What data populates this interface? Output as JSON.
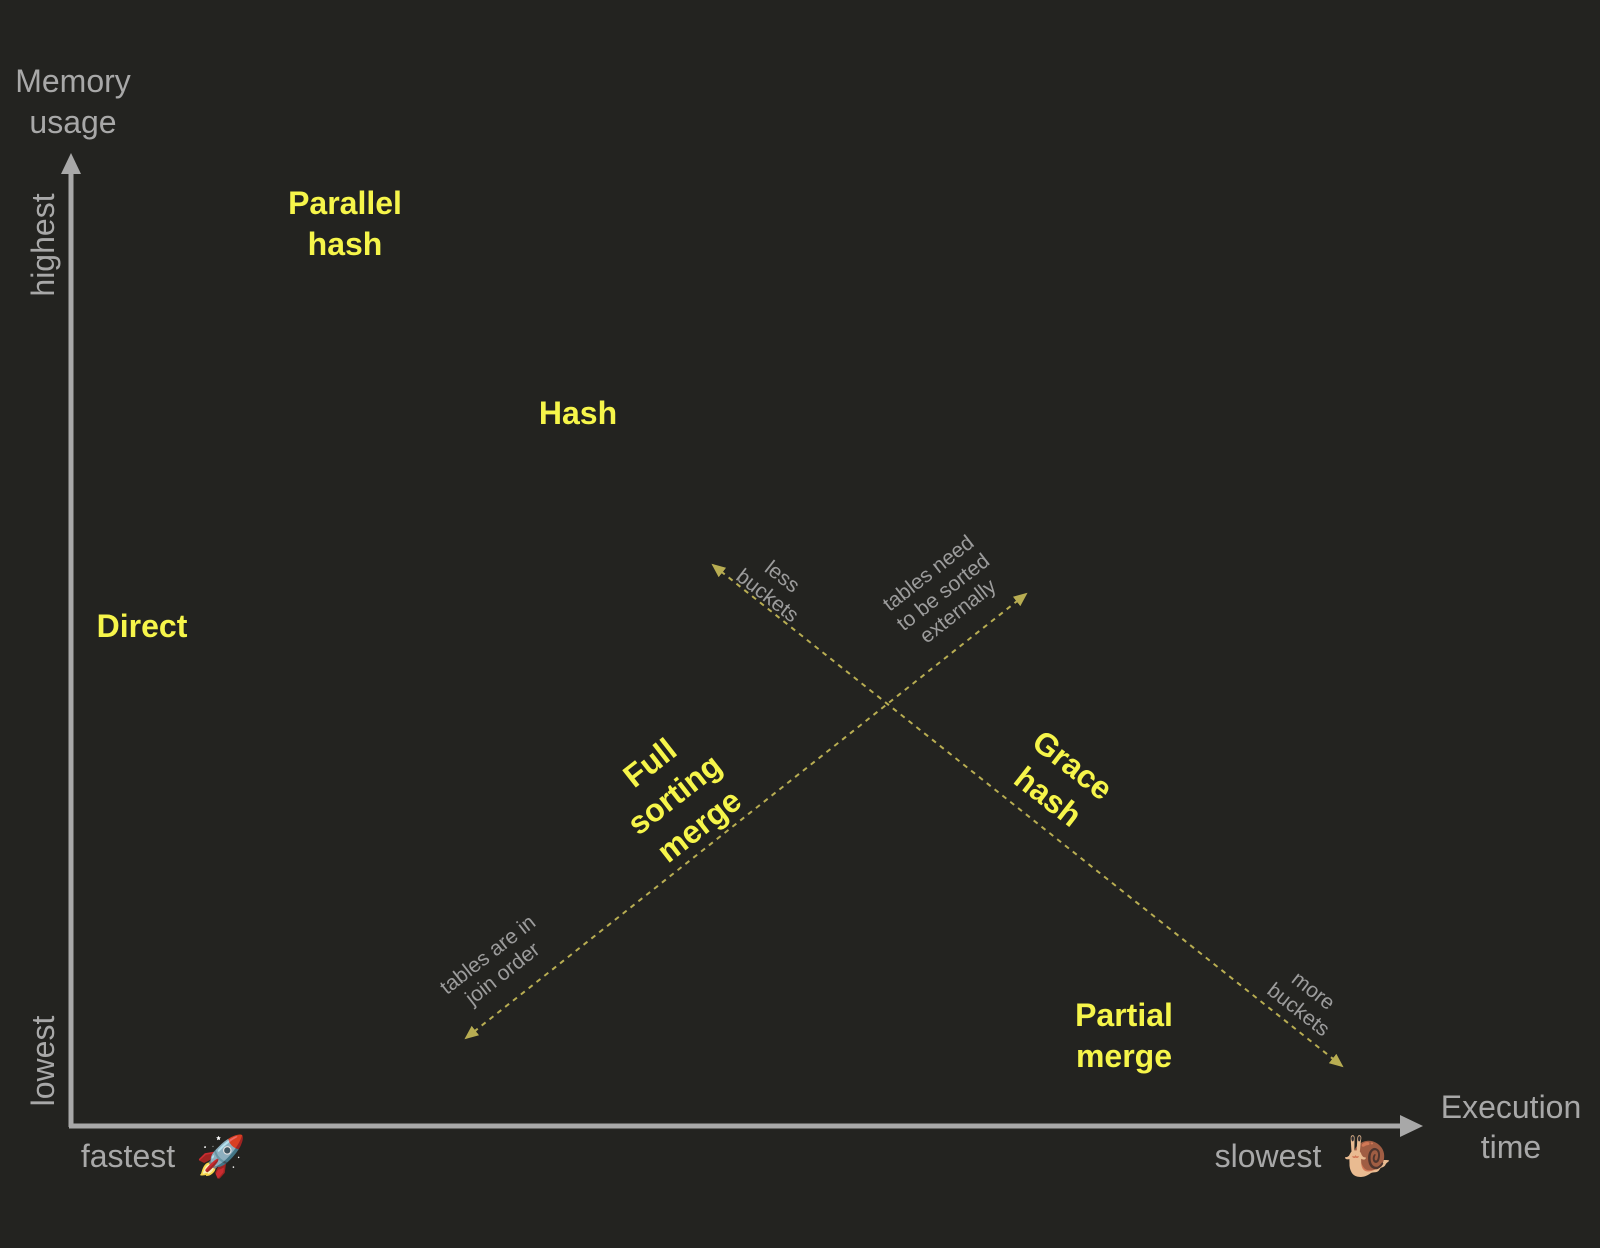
{
  "y_axis": {
    "title_lines": [
      "Memory",
      "usage"
    ],
    "high_label": "highest",
    "low_label": "lowest"
  },
  "x_axis": {
    "title_lines": [
      "Execution",
      "time"
    ],
    "low_label": "fastest",
    "high_label": "slowest",
    "low_icon": "rocket-icon",
    "high_icon": "snail-icon"
  },
  "algorithms": {
    "parallel_hash": [
      "Parallel",
      "hash"
    ],
    "hash": "Hash",
    "direct": "Direct",
    "full_sorting_merge": [
      "Full",
      "sorting",
      "merge"
    ],
    "grace_hash": [
      "Grace",
      "hash"
    ],
    "partial_merge": [
      "Partial",
      "merge"
    ]
  },
  "annotations": {
    "less_buckets": [
      "less",
      "buckets"
    ],
    "more_buckets": [
      "more",
      "buckets"
    ],
    "sorted_externally": [
      "tables need",
      "to be sorted",
      "externally"
    ],
    "join_order": [
      "tables are in",
      "join order"
    ]
  },
  "colors": {
    "background": "#232320",
    "axis": "#a8a8a8",
    "algorithm_label": "#f6f54a",
    "tradeoff_line": "#b8ad52",
    "note": "#9c9c9c"
  }
}
